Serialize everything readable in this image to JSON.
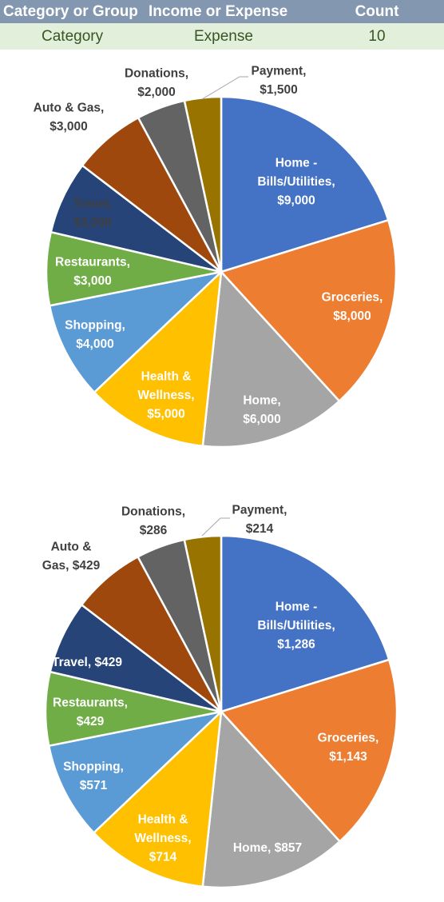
{
  "table": {
    "headers": [
      "Category or Group",
      "Income or Expense",
      "Count"
    ],
    "row": [
      "Category",
      "Expense",
      "10"
    ]
  },
  "chart_data": [
    {
      "type": "pie",
      "categories": [
        "Home - Bills/Utilities",
        "Groceries",
        "Home",
        "Health & Wellness",
        "Shopping",
        "Restaurants",
        "Travel",
        "Auto & Gas",
        "Donations",
        "Payment"
      ],
      "values": [
        9000,
        8000,
        6000,
        5000,
        4000,
        3000,
        3000,
        3000,
        2000,
        1500
      ],
      "data_labels": [
        [
          "Home -",
          "Bills/Utilities,",
          "$9,000"
        ],
        [
          "Groceries,",
          "$8,000"
        ],
        [
          "Home,",
          "$6,000"
        ],
        [
          "Health &",
          "Wellness,",
          "$5,000"
        ],
        [
          "Shopping,",
          "$4,000"
        ],
        [
          "Restaurants,",
          "$3,000"
        ],
        [
          "Travel,",
          "$3,000"
        ],
        [
          "Auto & Gas,",
          "$3,000"
        ],
        [
          "Donations,",
          "$2,000"
        ],
        [
          "Payment,",
          "$1,500"
        ]
      ],
      "colors": [
        "#4472c4",
        "#ed7d31",
        "#a5a5a5",
        "#ffc000",
        "#5b9bd5",
        "#70ad47",
        "#264478",
        "#9e480e",
        "#636363",
        "#997300"
      ],
      "label_colors": [
        "#ffffff",
        "#ffffff",
        "#ffffff",
        "#ffffff",
        "#ffffff",
        "#ffffff",
        "#404040",
        "#404040",
        "#404040",
        "#404040"
      ]
    },
    {
      "type": "pie",
      "categories": [
        "Home - Bills/Utilities",
        "Groceries",
        "Home",
        "Health & Wellness",
        "Shopping",
        "Restaurants",
        "Travel",
        "Auto & Gas",
        "Donations",
        "Payment"
      ],
      "values": [
        1286,
        1143,
        857,
        714,
        571,
        429,
        429,
        429,
        286,
        214
      ],
      "data_labels": [
        [
          "Home -",
          "Bills/Utilities,",
          "$1,286"
        ],
        [
          "Groceries,",
          "$1,143"
        ],
        [
          "Home, $857"
        ],
        [
          "Health &",
          "Wellness,",
          "$714"
        ],
        [
          "Shopping,",
          "$571"
        ],
        [
          "Restaurants,",
          "$429"
        ],
        [
          "Travel, $429"
        ],
        [
          "Auto &",
          "Gas, $429"
        ],
        [
          "Donations,",
          "$286"
        ],
        [
          "Payment,",
          "$214"
        ]
      ],
      "colors": [
        "#4472c4",
        "#ed7d31",
        "#a5a5a5",
        "#ffc000",
        "#5b9bd5",
        "#70ad47",
        "#264478",
        "#9e480e",
        "#636363",
        "#997300"
      ],
      "label_colors": [
        "#ffffff",
        "#ffffff",
        "#ffffff",
        "#ffffff",
        "#ffffff",
        "#ffffff",
        "#ffffff",
        "#404040",
        "#404040",
        "#404040"
      ]
    }
  ]
}
